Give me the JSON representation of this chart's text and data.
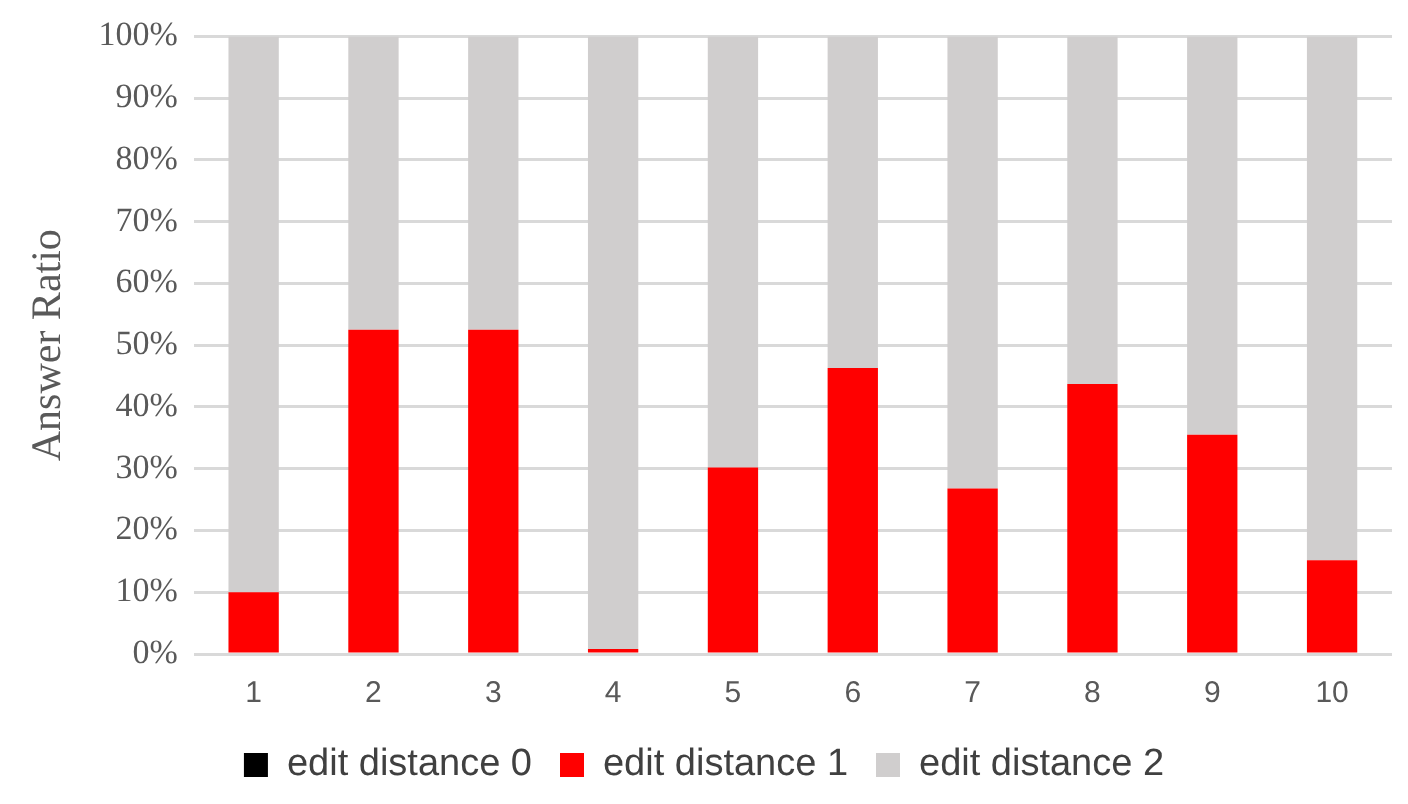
{
  "chart_data": {
    "type": "bar",
    "stacked": true,
    "ylabel": "Answer Ratio",
    "categories": [
      "1",
      "2",
      "3",
      "4",
      "5",
      "6",
      "7",
      "8",
      "9",
      "10"
    ],
    "series": [
      {
        "name": "edit distance 0",
        "color": "#000000",
        "values": [
          0,
          0,
          0,
          0,
          0,
          0,
          0,
          0,
          0,
          0
        ]
      },
      {
        "name": "edit distance 1",
        "color": "#ff0000",
        "values": [
          10,
          52.5,
          52.5,
          0.8,
          30.2,
          46.3,
          26.8,
          43.7,
          35.5,
          15.2
        ]
      },
      {
        "name": "edit distance 2",
        "color": "#d0cece",
        "values": [
          90,
          47.5,
          47.5,
          99.2,
          69.8,
          53.7,
          73.2,
          56.3,
          64.5,
          84.8
        ]
      }
    ],
    "ylim": [
      0,
      100
    ],
    "yticks": [
      {
        "value": 0,
        "label": "0%"
      },
      {
        "value": 10,
        "label": "10%"
      },
      {
        "value": 20,
        "label": "20%"
      },
      {
        "value": 30,
        "label": "30%"
      },
      {
        "value": 40,
        "label": "40%"
      },
      {
        "value": 50,
        "label": "50%"
      },
      {
        "value": 60,
        "label": "60%"
      },
      {
        "value": 70,
        "label": "70%"
      },
      {
        "value": 80,
        "label": "80%"
      },
      {
        "value": 90,
        "label": "90%"
      },
      {
        "value": 100,
        "label": "100%"
      }
    ],
    "grid": "y",
    "legend": "bottom"
  }
}
